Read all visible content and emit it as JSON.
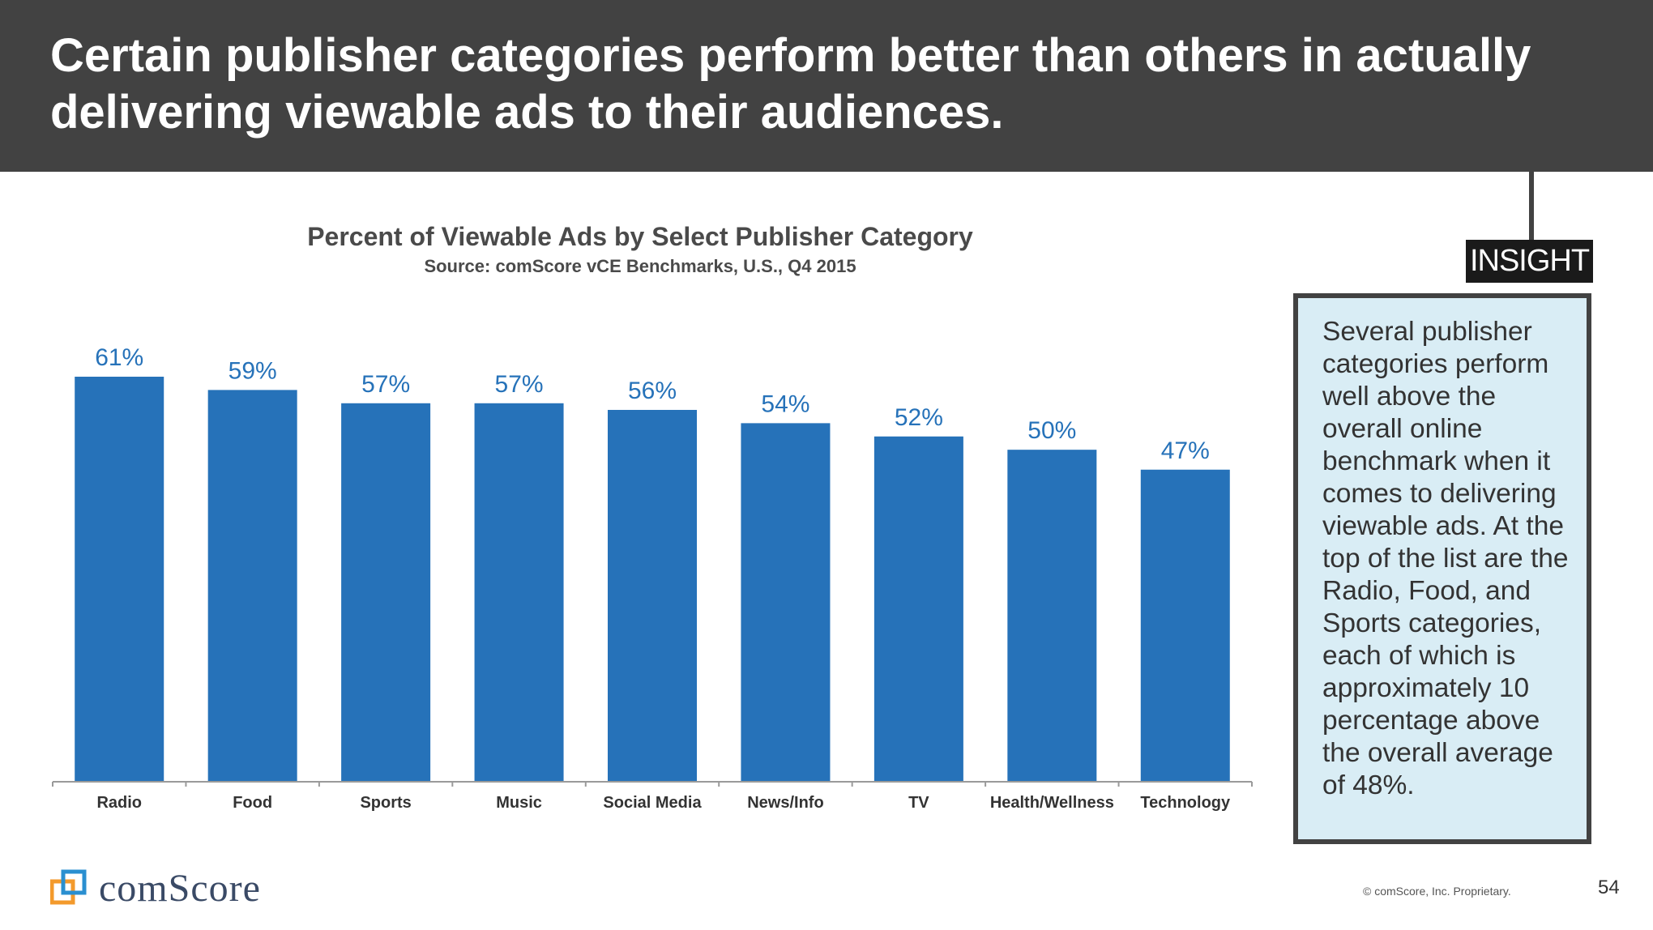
{
  "header": {
    "title": "Certain publisher categories perform better than others in actually delivering viewable ads to their audiences."
  },
  "insight": {
    "label": "INSIGHT",
    "text": "Several publisher categories perform well above the overall online benchmark when it comes to delivering viewable ads. At the top of the list are the Radio, Food, and Sports categories, each of which is approximately 10 percentage above the overall average of 48%."
  },
  "chart_data": {
    "type": "bar",
    "title": "Percent of Viewable Ads by Select Publisher Category",
    "subtitle": "Source: comScore vCE Benchmarks, U.S., Q4 2015",
    "categories": [
      "Radio",
      "Food",
      "Sports",
      "Music",
      "Social Media",
      "News/Info",
      "TV",
      "Health/Wellness",
      "Technology"
    ],
    "values": [
      61,
      59,
      57,
      57,
      56,
      54,
      52,
      50,
      47
    ],
    "value_labels": [
      "61%",
      "59%",
      "57%",
      "57%",
      "56%",
      "54%",
      "52%",
      "50%",
      "47%"
    ],
    "xlabel": "",
    "ylabel": "",
    "ylim": [
      0,
      61
    ],
    "grid": false,
    "bar_color": "#2672b9",
    "label_color": "#2672b9"
  },
  "footer": {
    "logo": "comScore",
    "copyright": "© comScore, Inc. Proprietary.",
    "page": "54"
  }
}
